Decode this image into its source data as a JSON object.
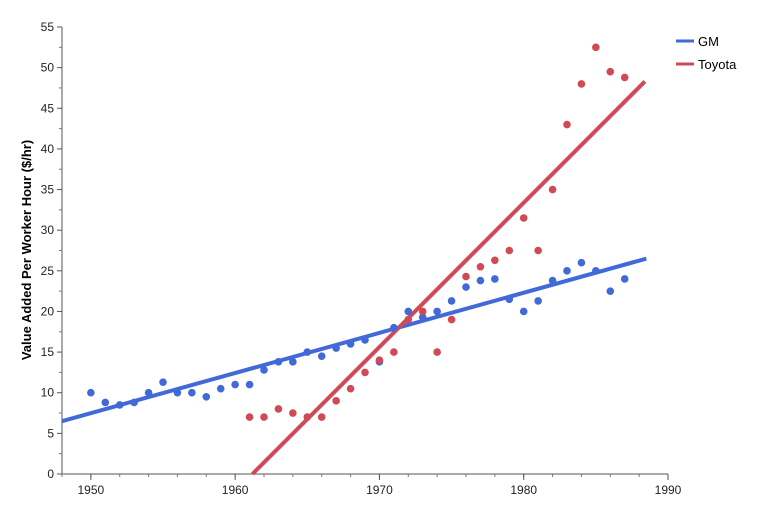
{
  "chart_data": {
    "type": "scatter",
    "xlabel": "",
    "ylabel": "Value Added Per Worker Hour ($/hr)",
    "xlim": [
      1948,
      1990
    ],
    "ylim": [
      0,
      55
    ],
    "x_ticks": [
      "1950",
      "1960",
      "1970",
      "1980",
      "1990"
    ],
    "y_ticks": [
      "0",
      "5",
      "10",
      "15",
      "20",
      "25",
      "30",
      "35",
      "40",
      "45",
      "50",
      "55"
    ],
    "grid": false,
    "legend_position": "top-right",
    "series": [
      {
        "name": "GM",
        "color": "#4169d8",
        "points": [
          [
            1950,
            10.0
          ],
          [
            1951,
            8.8
          ],
          [
            1952,
            8.5
          ],
          [
            1953,
            8.8
          ],
          [
            1954,
            10.0
          ],
          [
            1955,
            11.3
          ],
          [
            1956,
            10.0
          ],
          [
            1957,
            10.0
          ],
          [
            1958,
            9.5
          ],
          [
            1959,
            10.5
          ],
          [
            1960,
            11.0
          ],
          [
            1961,
            11.0
          ],
          [
            1962,
            12.8
          ],
          [
            1963,
            13.8
          ],
          [
            1964,
            13.8
          ],
          [
            1965,
            15.0
          ],
          [
            1966,
            14.5
          ],
          [
            1967,
            15.5
          ],
          [
            1968,
            16.0
          ],
          [
            1969,
            16.5
          ],
          [
            1970,
            13.8
          ],
          [
            1971,
            18.0
          ],
          [
            1972,
            20.0
          ],
          [
            1973,
            19.3
          ],
          [
            1974,
            20.0
          ],
          [
            1975,
            21.3
          ],
          [
            1976,
            23.0
          ],
          [
            1977,
            23.8
          ],
          [
            1978,
            24.0
          ],
          [
            1979,
            21.5
          ],
          [
            1980,
            20.0
          ],
          [
            1981,
            21.3
          ],
          [
            1982,
            23.8
          ],
          [
            1983,
            25.0
          ],
          [
            1984,
            26.0
          ],
          [
            1985,
            25.0
          ],
          [
            1986,
            22.5
          ],
          [
            1987,
            24.0
          ]
        ],
        "fit": [
          [
            1948,
            6.5
          ],
          [
            1988.5,
            26.5
          ]
        ]
      },
      {
        "name": "Toyota",
        "color": "#d04a55",
        "points": [
          [
            1961,
            7.0
          ],
          [
            1962,
            7.0
          ],
          [
            1963,
            8.0
          ],
          [
            1964,
            7.5
          ],
          [
            1965,
            7.0
          ],
          [
            1966,
            7.0
          ],
          [
            1967,
            9.0
          ],
          [
            1968,
            10.5
          ],
          [
            1969,
            12.5
          ],
          [
            1970,
            14.0
          ],
          [
            1971,
            15.0
          ],
          [
            1972,
            19.0
          ],
          [
            1973,
            20.0
          ],
          [
            1974,
            15.0
          ],
          [
            1975,
            19.0
          ],
          [
            1976,
            24.3
          ],
          [
            1977,
            25.5
          ],
          [
            1978,
            26.3
          ],
          [
            1979,
            27.5
          ],
          [
            1980,
            31.5
          ],
          [
            1981,
            27.5
          ],
          [
            1982,
            35.0
          ],
          [
            1983,
            43.0
          ],
          [
            1984,
            48.0
          ],
          [
            1985,
            52.5
          ],
          [
            1986,
            49.5
          ],
          [
            1987,
            48.8
          ]
        ],
        "fit": [
          [
            1961.2,
            0.0
          ],
          [
            1988.4,
            48.3
          ]
        ]
      }
    ]
  }
}
